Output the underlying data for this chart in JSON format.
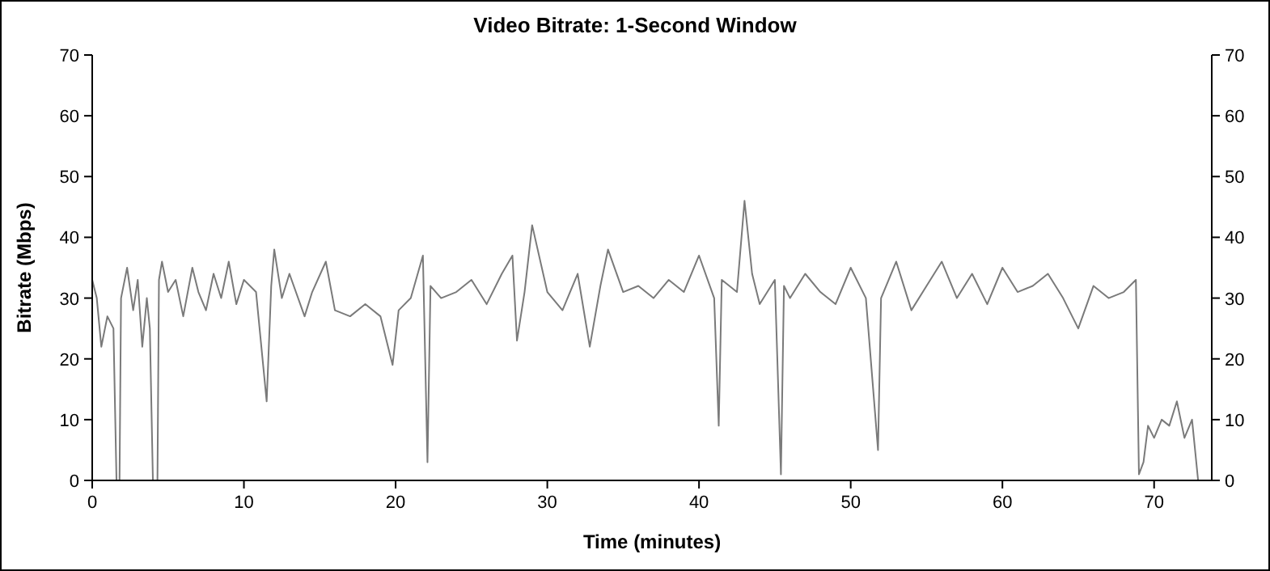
{
  "chart_data": {
    "type": "line",
    "title": "Video Bitrate: 1-Second Window",
    "xlabel": "Time (minutes)",
    "ylabel": "Bitrate (Mbps)",
    "xlim": [
      0,
      73.8
    ],
    "xticks": [
      0,
      10,
      20,
      30,
      40,
      50,
      60,
      70
    ],
    "ylim": [
      0,
      70
    ],
    "yticks": [
      0,
      10,
      20,
      30,
      40,
      50,
      60,
      70
    ],
    "y2lim": [
      0,
      70
    ],
    "y2ticks": [
      0,
      10,
      20,
      30,
      40,
      50,
      60,
      70
    ],
    "grid": false,
    "marker": "none",
    "line_style": "solid",
    "series": [
      {
        "color": "#7a7a7a",
        "x": [
          0,
          0.3,
          0.6,
          1,
          1.4,
          1.6,
          1.8,
          1.9,
          2.3,
          2.7,
          3,
          3.3,
          3.6,
          3.8,
          4,
          4.3,
          4.4,
          4.6,
          5,
          5.5,
          6,
          6.6,
          7,
          7.5,
          8,
          8.5,
          9,
          9.5,
          10,
          10.8,
          11.5,
          11.8,
          12,
          12.5,
          13,
          14,
          14.5,
          15.4,
          16,
          17,
          18,
          19,
          19.8,
          20.2,
          21,
          21.8,
          22.1,
          22.3,
          23,
          24,
          25,
          26,
          27,
          27.7,
          28,
          28.5,
          29,
          30,
          31,
          32,
          32.8,
          33.5,
          34,
          35,
          36,
          37,
          38,
          39,
          40,
          41,
          41.3,
          41.5,
          42.5,
          43,
          43.5,
          44,
          45,
          45.4,
          45.6,
          46,
          47,
          48,
          49,
          50,
          51,
          51.8,
          52,
          52.5,
          53,
          54,
          55,
          56,
          57,
          58,
          59,
          60,
          61,
          62,
          63,
          64,
          65,
          66,
          67,
          68,
          68.8,
          69,
          69.3,
          69.6,
          70,
          70.5,
          71,
          71.5,
          72,
          72.5,
          72.9
        ],
        "values": [
          33,
          30,
          22,
          27,
          25,
          0,
          0,
          30,
          35,
          28,
          33,
          22,
          30,
          25,
          0,
          0,
          33,
          36,
          31,
          33,
          27,
          35,
          31,
          28,
          34,
          30,
          36,
          29,
          33,
          31,
          13,
          32,
          38,
          30,
          34,
          27,
          31,
          36,
          28,
          27,
          29,
          27,
          19,
          28,
          30,
          37,
          3,
          32,
          30,
          31,
          33,
          29,
          34,
          37,
          23,
          31,
          42,
          31,
          28,
          34,
          22,
          32,
          38,
          31,
          32,
          30,
          33,
          31,
          37,
          30,
          9,
          33,
          31,
          46,
          34,
          29,
          33,
          1,
          32,
          30,
          34,
          31,
          29,
          35,
          30,
          5,
          30,
          33,
          36,
          28,
          32,
          36,
          30,
          34,
          29,
          35,
          31,
          32,
          34,
          30,
          25,
          32,
          30,
          31,
          33,
          1,
          3,
          9,
          7,
          10,
          9,
          13,
          7,
          10,
          0
        ]
      }
    ]
  }
}
